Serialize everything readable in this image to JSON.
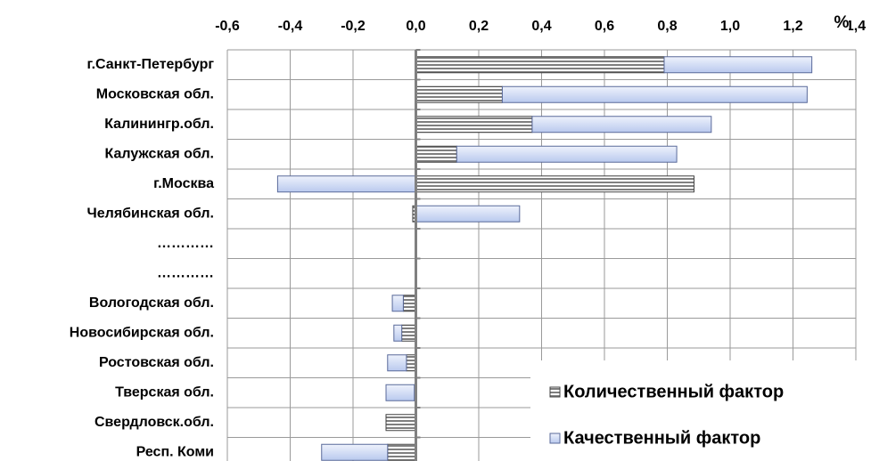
{
  "chart_data": {
    "type": "bar",
    "orientation": "horizontal",
    "stacked": true,
    "x_unit_label": "%",
    "categories": [
      "г.Санкт-Петербург",
      "Московская обл.",
      "Калинингр.обл.",
      "Калужская обл.",
      "г.Москва",
      "Челябинская обл.",
      "…………",
      "…………",
      "Вологодская обл.",
      "Новосибирская обл.",
      "Ростовская обл.",
      "Тверская обл.",
      "Свердловск.обл.",
      "Респ. Коми"
    ],
    "series": [
      {
        "name": "Количественный фактор",
        "color": "#7f7f7f",
        "values": [
          0.79,
          0.275,
          0.37,
          0.13,
          0.885,
          -0.01,
          null,
          null,
          -0.04,
          -0.045,
          -0.03,
          -0.005,
          -0.095,
          -0.09
        ]
      },
      {
        "name": "Качественный фактор",
        "color": "#b9c9ee",
        "values": [
          0.47,
          0.97,
          0.57,
          0.7,
          -0.44,
          0.33,
          null,
          null,
          -0.035,
          -0.025,
          -0.06,
          -0.09,
          0,
          -0.21
        ]
      }
    ],
    "xlim": [
      -0.6,
      1.4
    ],
    "xticks": [
      {
        "value": -0.6,
        "label": "-0,6"
      },
      {
        "value": -0.4,
        "label": "-0,4"
      },
      {
        "value": -0.2,
        "label": "-0,2"
      },
      {
        "value": 0,
        "label": "0,0"
      },
      {
        "value": 0.2,
        "label": "0,2"
      },
      {
        "value": 0.4,
        "label": "0,4"
      },
      {
        "value": 0.6,
        "label": "0,6"
      },
      {
        "value": 0.8,
        "label": "0,8"
      },
      {
        "value": 1,
        "label": "1,0"
      },
      {
        "value": 1.2,
        "label": "1,2"
      },
      {
        "value": 1.4,
        "label": "1,4"
      }
    ],
    "grid": true,
    "legend_position": "lower right"
  }
}
